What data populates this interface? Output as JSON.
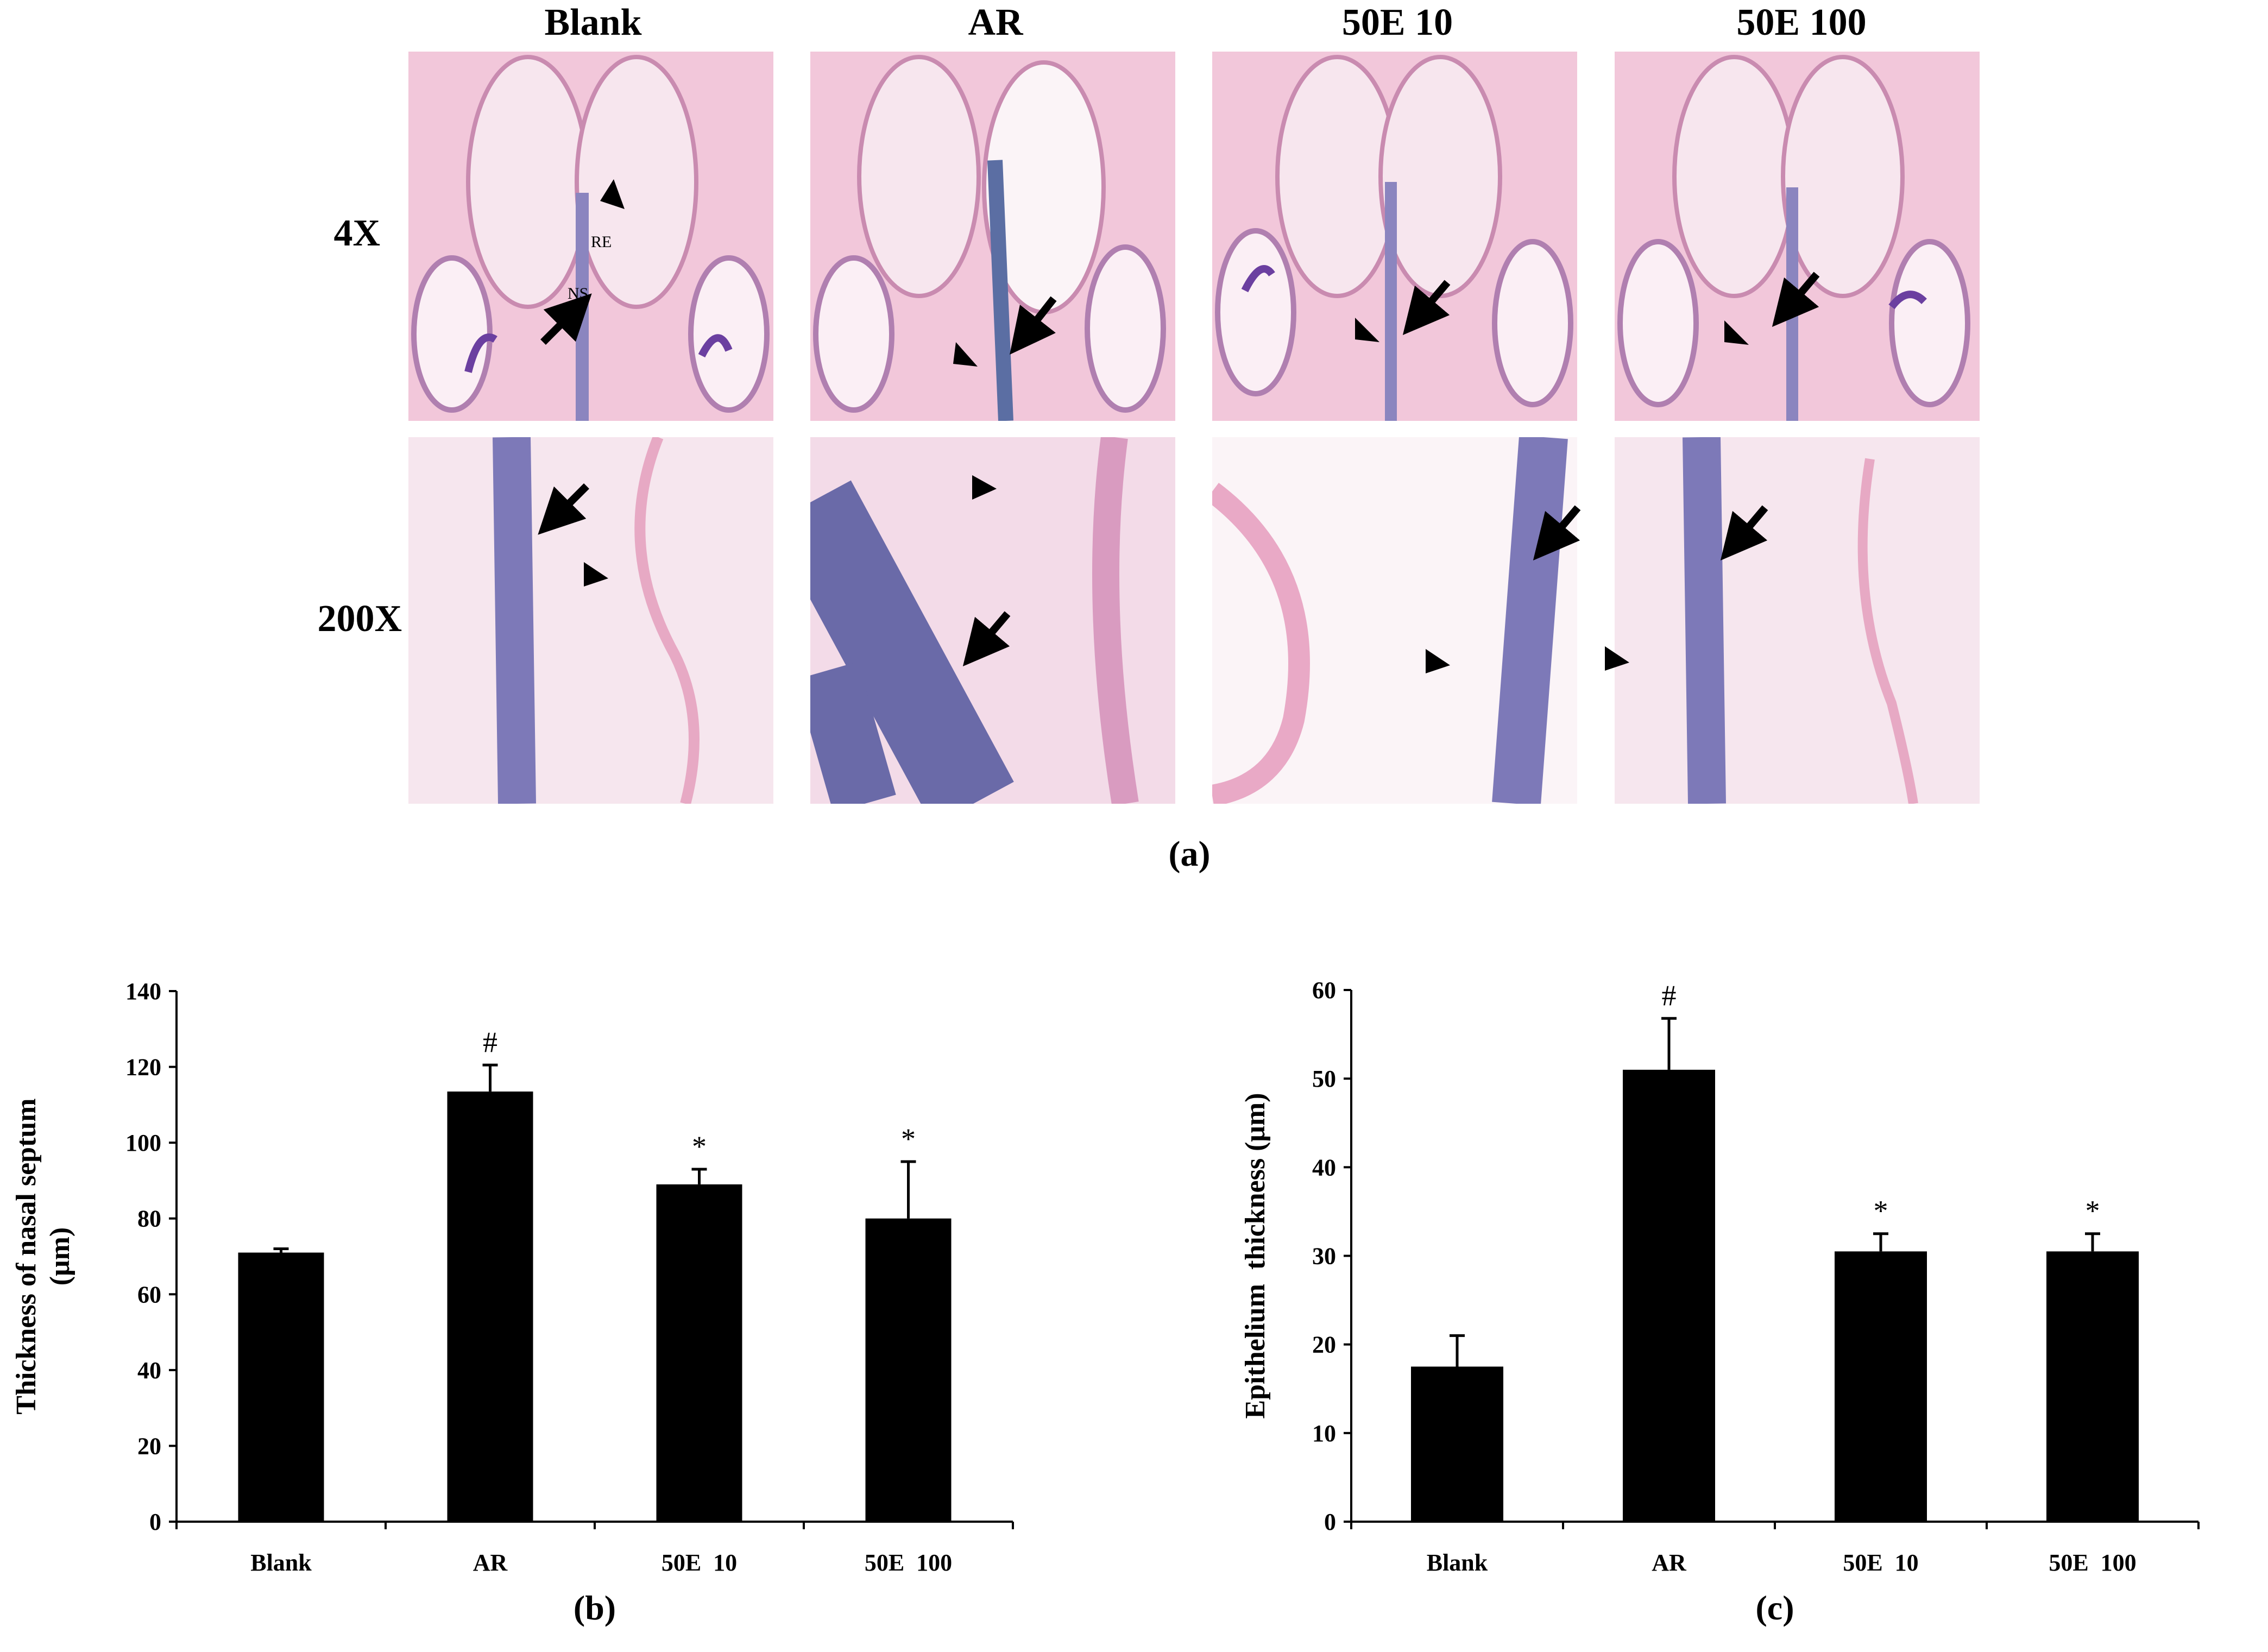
{
  "histology": {
    "columns": [
      "Blank",
      "AR",
      "50E 10",
      "50E 100"
    ],
    "rows": [
      "4X",
      "200X"
    ],
    "annotations": {
      "blank_4x_label_1": "RE",
      "blank_4x_label_2": "NS"
    },
    "label": "(a)"
  },
  "chart_data": [
    {
      "type": "bar",
      "label": "(b)",
      "categories": [
        "Blank",
        "AR",
        "50E  10",
        "50E  100"
      ],
      "values": [
        71,
        113.5,
        89,
        80
      ],
      "errors": [
        1,
        7,
        4,
        15
      ],
      "annotations": [
        "",
        "#",
        "*",
        "*"
      ],
      "ylabel": "Thickness of nasal septum (μm)",
      "ylabel_lines": [
        "Thickness of nasal septum",
        "(μm)"
      ],
      "ylim": [
        0,
        140
      ],
      "yticks": [
        0,
        20,
        40,
        60,
        80,
        100,
        120,
        140
      ],
      "bar_color": "#000000"
    },
    {
      "type": "bar",
      "label": "(c)",
      "categories": [
        "Blank",
        "AR",
        "50E  10",
        "50E  100"
      ],
      "values": [
        17.5,
        51,
        30.5,
        30.5
      ],
      "errors": [
        3.5,
        5.8,
        2,
        2
      ],
      "annotations": [
        "",
        "#",
        "*",
        "*"
      ],
      "ylabel": "Epithelium  thickness (μm)",
      "ylabel_lines": [
        "Epithelium  thickness (μm)"
      ],
      "ylim": [
        0,
        60
      ],
      "yticks": [
        0,
        10,
        20,
        30,
        40,
        50,
        60
      ],
      "bar_color": "#000000"
    }
  ]
}
